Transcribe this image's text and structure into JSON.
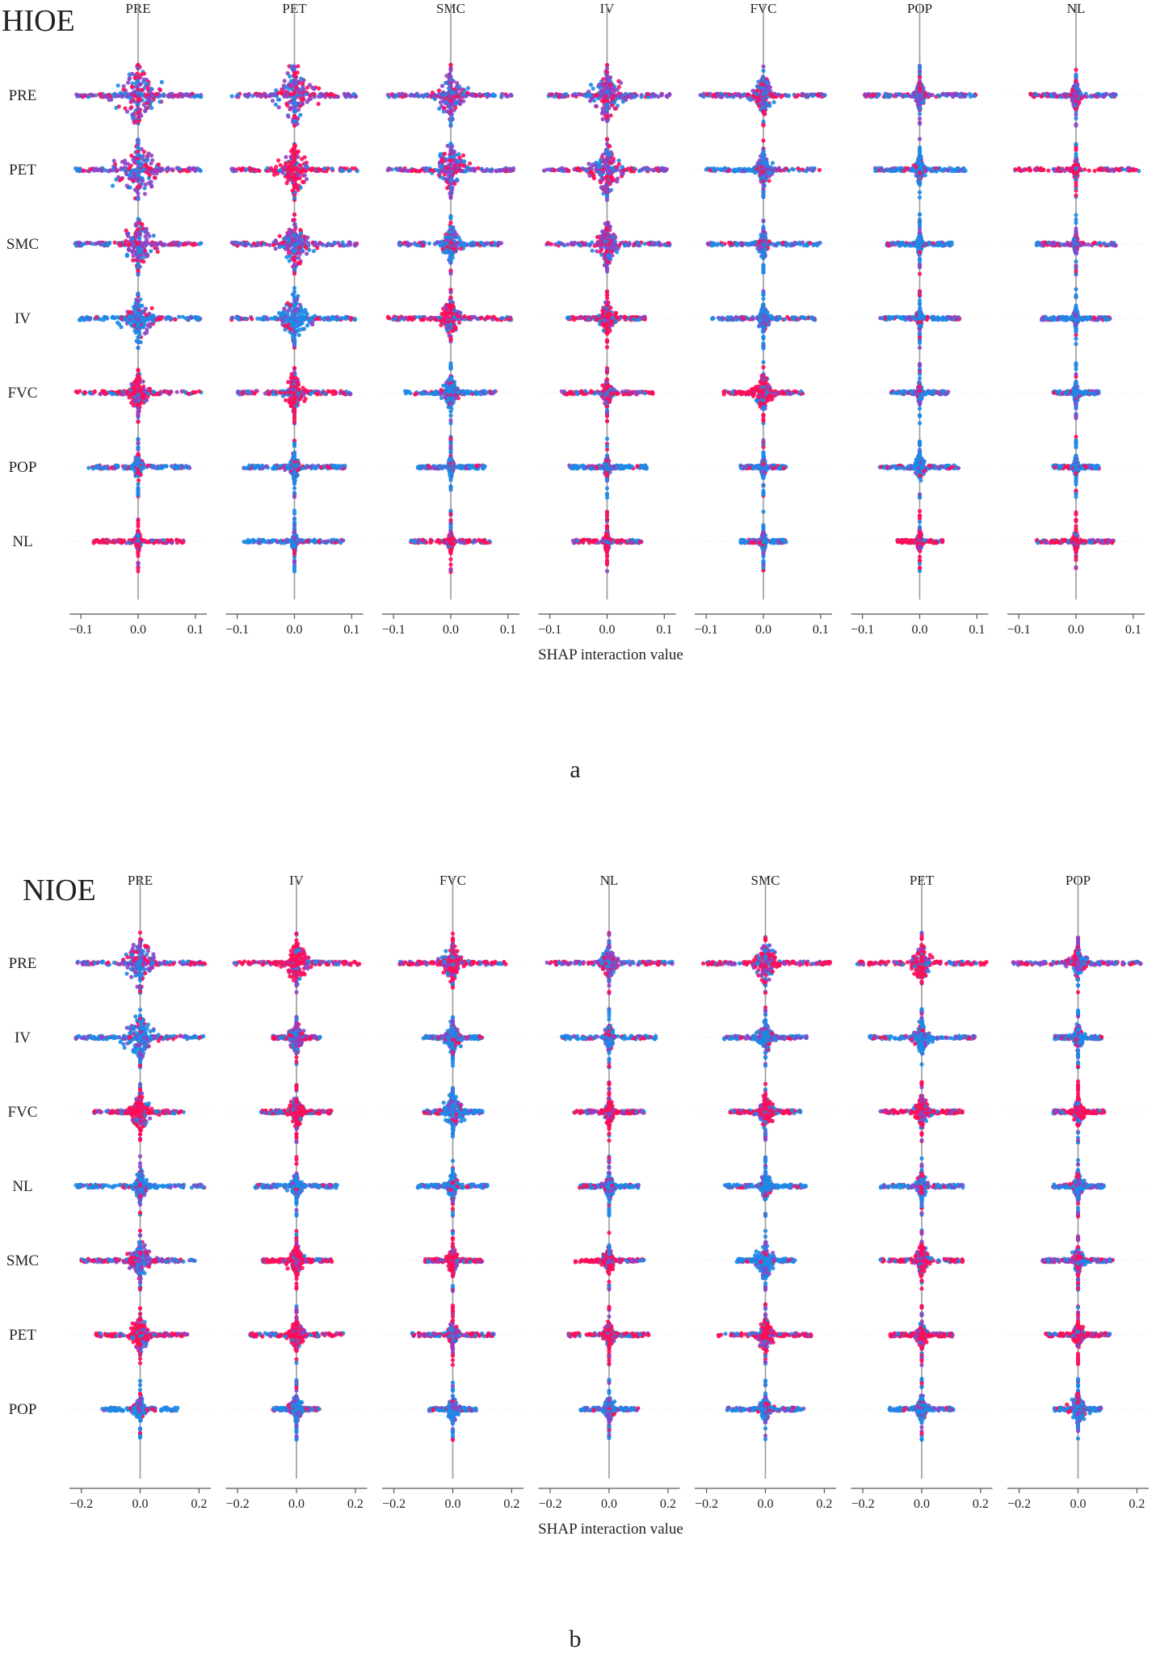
{
  "colors": {
    "low": "#1e88e5",
    "high": "#ff0d57",
    "mid": "#8c44c6",
    "axis": "#555555",
    "zero_line": "#9a9a9a",
    "grid": "#e2e2e2"
  },
  "chart_data": [
    {
      "type": "scatter",
      "subtype": "shap-interaction-beeswarm-matrix",
      "panel_title": "HIOE",
      "caption": "a",
      "column_features": [
        "PRE",
        "PET",
        "SMC",
        "IV",
        "FVC",
        "POP",
        "NL"
      ],
      "row_features": [
        "PRE",
        "PET",
        "SMC",
        "IV",
        "FVC",
        "POP",
        "NL"
      ],
      "xlabel": "SHAP interaction value",
      "xlim": [
        -0.12,
        0.12
      ],
      "xticks": [
        -0.1,
        0.0,
        0.1
      ],
      "xtick_labels": [
        "−0.1",
        "0.0",
        "0.1"
      ],
      "value_spread": [
        [
          0.11,
          0.11,
          0.11,
          0.11,
          0.11,
          0.1,
          0.08
        ],
        [
          0.11,
          0.11,
          0.11,
          0.11,
          0.1,
          0.08,
          0.11
        ],
        [
          0.11,
          0.11,
          0.09,
          0.11,
          0.1,
          0.06,
          0.07
        ],
        [
          0.11,
          0.11,
          0.11,
          0.07,
          0.09,
          0.07,
          0.06
        ],
        [
          0.11,
          0.1,
          0.08,
          0.08,
          0.07,
          0.05,
          0.04
        ],
        [
          0.09,
          0.09,
          0.06,
          0.07,
          0.04,
          0.07,
          0.04
        ],
        [
          0.08,
          0.09,
          0.07,
          0.06,
          0.04,
          0.04,
          0.07
        ]
      ],
      "core_spread": [
        [
          0.04,
          0.04,
          0.03,
          0.03,
          0.02,
          0.01,
          0.01
        ],
        [
          0.04,
          0.03,
          0.03,
          0.03,
          0.015,
          0.01,
          0.005
        ],
        [
          0.03,
          0.03,
          0.02,
          0.025,
          0.01,
          0.005,
          0.005
        ],
        [
          0.03,
          0.03,
          0.02,
          0.015,
          0.01,
          0.005,
          0.005
        ],
        [
          0.02,
          0.02,
          0.015,
          0.01,
          0.02,
          0.005,
          0.005
        ],
        [
          0.01,
          0.01,
          0.005,
          0.005,
          0.005,
          0.01,
          0.005
        ],
        [
          0.005,
          0.005,
          0.005,
          0.005,
          0.005,
          0.005,
          0.005
        ]
      ],
      "dominant_color": [
        [
          "mid",
          "mid",
          "mid",
          "mid",
          "mid",
          "mid",
          "mid"
        ],
        [
          "mid",
          "high",
          "mid",
          "mid",
          "low",
          "low",
          "high"
        ],
        [
          "mid",
          "mid",
          "low",
          "mid",
          "low",
          "low",
          "mid"
        ],
        [
          "low",
          "low",
          "high",
          "high",
          "low",
          "low",
          "low"
        ],
        [
          "high",
          "high",
          "low",
          "high",
          "high",
          "low",
          "low"
        ],
        [
          "low",
          "low",
          "low",
          "low",
          "low",
          "low",
          "low"
        ],
        [
          "high",
          "low",
          "high",
          "high",
          "low",
          "high",
          "high"
        ]
      ]
    },
    {
      "type": "scatter",
      "subtype": "shap-interaction-beeswarm-matrix",
      "panel_title": "NIOE",
      "caption": "b",
      "column_features": [
        "PRE",
        "IV",
        "FVC",
        "NL",
        "SMC",
        "PET",
        "POP"
      ],
      "row_features": [
        "PRE",
        "IV",
        "FVC",
        "NL",
        "SMC",
        "PET",
        "POP"
      ],
      "xlabel": "SHAP interaction value",
      "xlim": [
        -0.24,
        0.24
      ],
      "xticks": [
        -0.2,
        0.0,
        0.2
      ],
      "xtick_labels": [
        "−0.2",
        "0.0",
        "0.2"
      ],
      "value_spread": [
        [
          0.22,
          0.22,
          0.18,
          0.22,
          0.22,
          0.22,
          0.22
        ],
        [
          0.22,
          0.08,
          0.1,
          0.16,
          0.14,
          0.18,
          0.08
        ],
        [
          0.16,
          0.12,
          0.1,
          0.12,
          0.12,
          0.14,
          0.09
        ],
        [
          0.22,
          0.14,
          0.12,
          0.1,
          0.14,
          0.14,
          0.09
        ],
        [
          0.2,
          0.12,
          0.1,
          0.12,
          0.1,
          0.14,
          0.12
        ],
        [
          0.16,
          0.16,
          0.14,
          0.14,
          0.16,
          0.11,
          0.11
        ],
        [
          0.13,
          0.08,
          0.08,
          0.1,
          0.13,
          0.11,
          0.08
        ]
      ],
      "core_spread": [
        [
          0.06,
          0.05,
          0.04,
          0.03,
          0.05,
          0.04,
          0.03
        ],
        [
          0.05,
          0.03,
          0.03,
          0.02,
          0.03,
          0.03,
          0.02
        ],
        [
          0.04,
          0.03,
          0.04,
          0.02,
          0.03,
          0.03,
          0.02
        ],
        [
          0.03,
          0.02,
          0.02,
          0.02,
          0.02,
          0.02,
          0.02
        ],
        [
          0.04,
          0.03,
          0.02,
          0.02,
          0.04,
          0.03,
          0.02
        ],
        [
          0.04,
          0.03,
          0.02,
          0.02,
          0.03,
          0.02,
          0.02
        ],
        [
          0.02,
          0.02,
          0.02,
          0.02,
          0.02,
          0.02,
          0.03
        ]
      ],
      "dominant_color": [
        [
          "mid",
          "high",
          "high",
          "mid",
          "high",
          "high",
          "mid"
        ],
        [
          "low",
          "mid",
          "low",
          "low",
          "low",
          "low",
          "low"
        ],
        [
          "high",
          "high",
          "low",
          "high",
          "high",
          "high",
          "high"
        ],
        [
          "low",
          "low",
          "low",
          "low",
          "low",
          "low",
          "low"
        ],
        [
          "mid",
          "high",
          "high",
          "high",
          "low",
          "high",
          "mid"
        ],
        [
          "high",
          "high",
          "high",
          "high",
          "high",
          "high",
          "high"
        ],
        [
          "low",
          "low",
          "low",
          "low",
          "low",
          "low",
          "low"
        ]
      ]
    }
  ]
}
